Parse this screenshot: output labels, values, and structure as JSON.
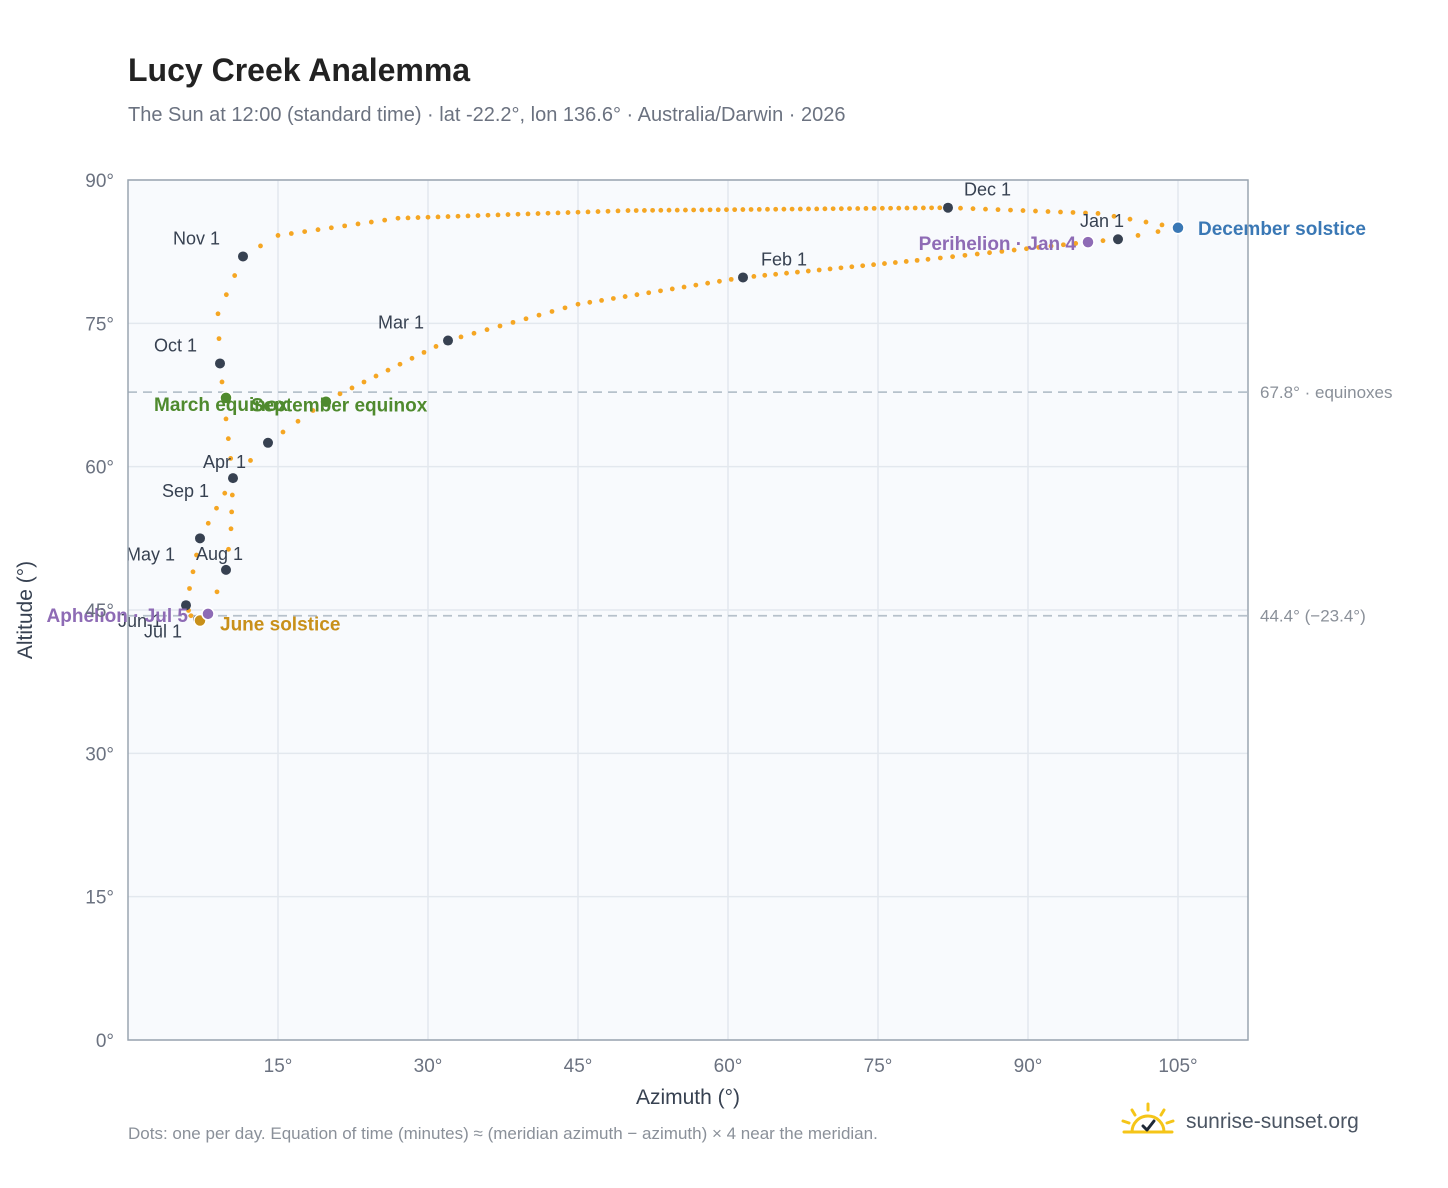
{
  "header": {
    "title": "Lucy Creek Analemma",
    "subtitle": "The Sun at 12:00 (standard time) · lat -22.2°, lon 136.6° · Australia/Darwin · 2026"
  },
  "footer": {
    "note": "Dots: one per day. Equation of time (minutes) ≈ (meridian azimuth − azimuth) × 4 near the meridian.",
    "brand": "sunrise-sunset.org",
    "brand_icon": "sunrise-logo-icon"
  },
  "colors": {
    "curve": "#f5a623",
    "month_marker": "#374151",
    "equinox": "#4f8a2e",
    "june_solstice": "#c8901a",
    "december_solstice": "#3a78b5",
    "aphelion_perihelion": "#8e6bb5",
    "plot_background": "#f8fafd",
    "grid": "#e3e8ee",
    "reference_line": "#b6c1cb"
  },
  "chart_data": {
    "type": "scatter",
    "title": "Lucy Creek Analemma",
    "xlabel": "Azimuth (°)",
    "ylabel": "Altitude (°)",
    "xlim": [
      0,
      112
    ],
    "ylim": [
      0,
      90
    ],
    "x_ticks": [
      15,
      30,
      45,
      60,
      75,
      90,
      105
    ],
    "x_tick_labels": [
      "15°",
      "30°",
      "45°",
      "60°",
      "75°",
      "90°",
      "105°"
    ],
    "y_ticks": [
      0,
      15,
      30,
      45,
      60,
      75,
      90
    ],
    "y_tick_labels": [
      "0°",
      "15°",
      "30°",
      "45°",
      "60°",
      "75°",
      "90°"
    ],
    "grid": true,
    "series": [
      {
        "points": [
          [
            105.0,
            85.0
          ],
          [
            99.0,
            83.8
          ],
          [
            96.0,
            83.5
          ],
          [
            80.0,
            81.7
          ],
          [
            61.5,
            79.8
          ],
          [
            45.0,
            77.0
          ],
          [
            32.0,
            73.2
          ],
          [
            20.0,
            67.0
          ],
          [
            14.0,
            62.5
          ],
          [
            10.5,
            58.8
          ],
          [
            7.2,
            52.5
          ],
          [
            5.8,
            45.5
          ],
          [
            6.3,
            44.4
          ],
          [
            7.2,
            43.8
          ],
          [
            8.0,
            44.6
          ],
          [
            9.8,
            49.2
          ],
          [
            10.3,
            53.5
          ],
          [
            10.5,
            58.8
          ],
          [
            9.8,
            65.0
          ],
          [
            9.2,
            70.8
          ],
          [
            9.0,
            76.0
          ],
          [
            11.5,
            82.0
          ],
          [
            15.0,
            84.2
          ],
          [
            27.0,
            86.0
          ],
          [
            50.0,
            86.8
          ],
          [
            82.0,
            87.1
          ],
          [
            97.0,
            86.5
          ],
          [
            105.0,
            85.0
          ]
        ]
      }
    ],
    "month_markers": [
      {
        "label": "Jan 1",
        "x": 99.0,
        "y": 83.8
      },
      {
        "label": "Feb 1",
        "x": 61.5,
        "y": 79.8
      },
      {
        "label": "Mar 1",
        "x": 32.0,
        "y": 73.2
      },
      {
        "label": "Apr 1",
        "x": 10.5,
        "y": 58.8
      },
      {
        "label": "May 1",
        "x": 7.2,
        "y": 52.5
      },
      {
        "label": "Jun 1",
        "x": 5.8,
        "y": 45.5
      },
      {
        "label": "Jul 1",
        "x": 7.0,
        "y": 44.0
      },
      {
        "label": "Aug 1",
        "x": 9.8,
        "y": 49.2
      },
      {
        "label": "Sep 1",
        "x": 14.0,
        "y": 62.5
      },
      {
        "label": "Oct 1",
        "x": 9.2,
        "y": 70.8
      },
      {
        "label": "Nov 1",
        "x": 11.5,
        "y": 82.0
      },
      {
        "label": "Dec 1",
        "x": 82.0,
        "y": 87.1
      }
    ],
    "events": [
      {
        "label": "December solstice",
        "x": 105.0,
        "y": 85.0,
        "color": "#3a78b5"
      },
      {
        "label": "June solstice",
        "x": 7.2,
        "y": 43.9,
        "color": "#c8901a"
      },
      {
        "label": "March equinox",
        "x": 9.8,
        "y": 67.2,
        "color": "#4f8a2e"
      },
      {
        "label": "September equinox",
        "x": 19.8,
        "y": 66.8,
        "color": "#4f8a2e"
      },
      {
        "label": "Perihelion · Jan 4",
        "x": 96.0,
        "y": 83.5,
        "color": "#8e6bb5"
      },
      {
        "label": "Aphelion · Jul 5",
        "x": 8.0,
        "y": 44.6,
        "color": "#8e6bb5"
      }
    ],
    "reference_lines": [
      {
        "y": 67.8,
        "label": "67.8° · equinoxes"
      },
      {
        "y": 44.4,
        "label": "44.4° (−23.4°)"
      }
    ]
  }
}
